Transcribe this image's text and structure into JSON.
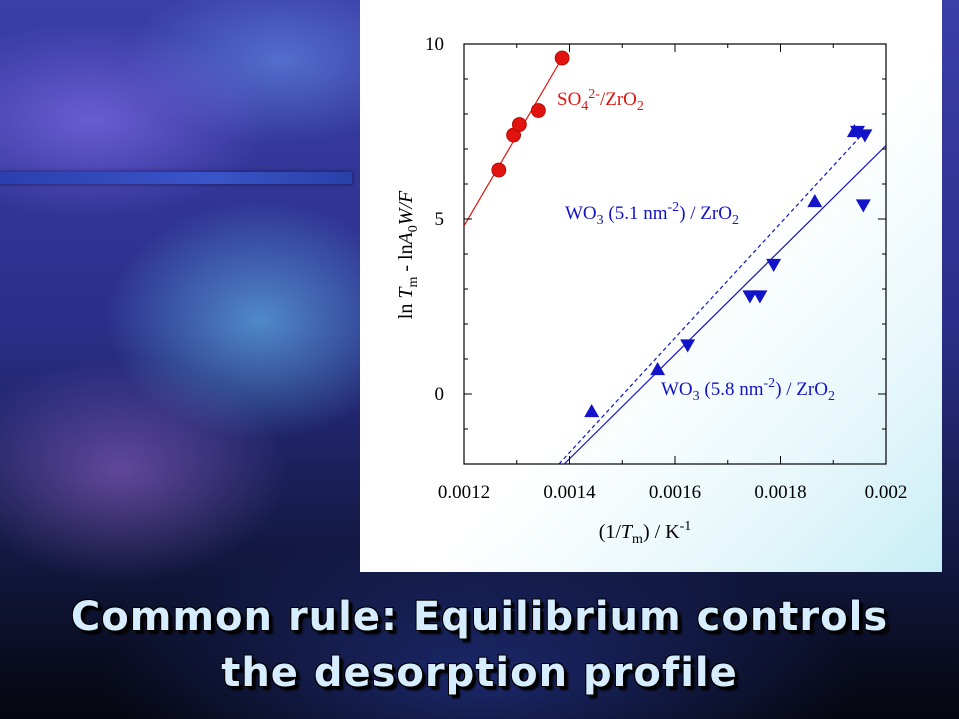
{
  "headline": {
    "line1": "Common rule: Equilibrium controls",
    "line2": "the desorption profile"
  },
  "colors": {
    "sulfate": "#e0130f",
    "tungstate": "#1313c8",
    "panel": "#ffffff",
    "headline_text": "#d6ecff"
  },
  "chart_data": {
    "type": "scatter",
    "xlim": [
      0.0012,
      0.002
    ],
    "ylim": [
      -2.0,
      10.0
    ],
    "xticks": [
      "0.0012",
      "0.0014",
      "0.0016",
      "0.0018",
      "0.002"
    ],
    "yticks": [
      "10",
      "5",
      "0"
    ],
    "xtick_values": [
      0.0012,
      0.0014,
      0.0016,
      0.0018,
      0.002
    ],
    "ytick_values": [
      10,
      5,
      0
    ],
    "xlabel": "(1/Tm) / K^-1",
    "ylabel": "ln Tm - ln A0W/F",
    "grid": false,
    "series": [
      {
        "name": "SO4 2-/ZrO2",
        "marker": "circle",
        "color": "#e0130f",
        "x": [
          0.001266,
          0.001294,
          0.001305,
          0.001341,
          0.001386
        ],
        "y": [
          6.4,
          7.4,
          7.7,
          8.1,
          9.6
        ],
        "fit": {
          "x": [
            0.0012,
            0.001386
          ],
          "y": [
            4.8,
            9.6
          ],
          "style": "solid"
        }
      },
      {
        "name": "WO3 (5.1 nm-2) / ZrO2",
        "marker": "triangle-down",
        "color": "#1313c8",
        "x": [
          0.001624,
          0.001742,
          0.001761,
          0.001787,
          0.001946,
          0.00196,
          0.001957
        ],
        "y": [
          1.4,
          2.8,
          2.8,
          3.7,
          7.5,
          7.4,
          5.4
        ],
        "fit": {
          "x": [
            0.00138,
            0.00196
          ],
          "y": [
            -2.0,
            7.5
          ],
          "style": "dashed"
        }
      },
      {
        "name": "WO3 (5.8 nm-2) / ZrO2",
        "marker": "triangle-up",
        "color": "#1313c8",
        "x": [
          0.001442,
          0.001567,
          0.001865,
          0.00194
        ],
        "y": [
          -0.5,
          0.7,
          5.5,
          7.5
        ],
        "fit": {
          "x": [
            0.00139,
            0.002
          ],
          "y": [
            -2.0,
            7.1
          ],
          "style": "solid"
        }
      }
    ],
    "labels": [
      {
        "key": "sulfate",
        "text": "SO4 2-/ZrO2"
      },
      {
        "key": "wo51",
        "text": "WO3 (5.1 nm-2) / ZrO2"
      },
      {
        "key": "wo58",
        "text": "WO3 (5.8 nm-2) / ZrO2"
      }
    ]
  }
}
